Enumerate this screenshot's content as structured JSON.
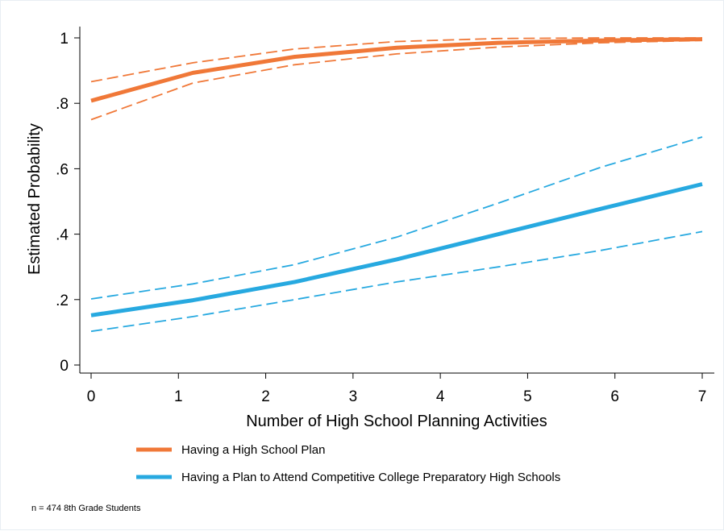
{
  "chart_data": {
    "type": "line",
    "xlabel": "Number of High School Planning Activities",
    "ylabel": "Estimated Probability",
    "xlim": [
      0,
      7
    ],
    "ylim": [
      0,
      1
    ],
    "x_ticks": [
      0,
      1,
      2,
      3,
      4,
      5,
      6,
      7
    ],
    "x_tick_labels": [
      "0",
      "1",
      "2",
      "3",
      "4",
      "5",
      "6",
      "7"
    ],
    "y_ticks": [
      0,
      0.2,
      0.4,
      0.6,
      0.8,
      1
    ],
    "y_tick_labels": [
      "0",
      ".2",
      ".4",
      ".6",
      ".8",
      "1"
    ],
    "grid": false,
    "legend_position": "bottom",
    "x": [
      0,
      1.167,
      2.333,
      3.5,
      4.667,
      5.833,
      7
    ],
    "series": [
      {
        "name": "Having a High School Plan",
        "color": "#f07838",
        "values": [
          0.808,
          0.893,
          0.942,
          0.97,
          0.985,
          0.992,
          0.996
        ],
        "ci_lower": [
          0.75,
          0.862,
          0.918,
          0.951,
          0.972,
          0.985,
          0.992
        ],
        "ci_upper": [
          0.866,
          0.924,
          0.966,
          0.989,
          0.998,
          1.0,
          1.0
        ]
      },
      {
        "name": "Having a Plan to Attend Competitive College Preparatory High Schools",
        "color": "#27a9e0",
        "values": [
          0.152,
          0.198,
          0.254,
          0.323,
          0.4,
          0.477,
          0.553
        ],
        "ci_lower": [
          0.103,
          0.148,
          0.2,
          0.254,
          0.3,
          0.35,
          0.408
        ],
        "ci_upper": [
          0.202,
          0.248,
          0.307,
          0.391,
          0.495,
          0.604,
          0.697
        ]
      }
    ],
    "note": "n = 474 8th Grade Students"
  }
}
